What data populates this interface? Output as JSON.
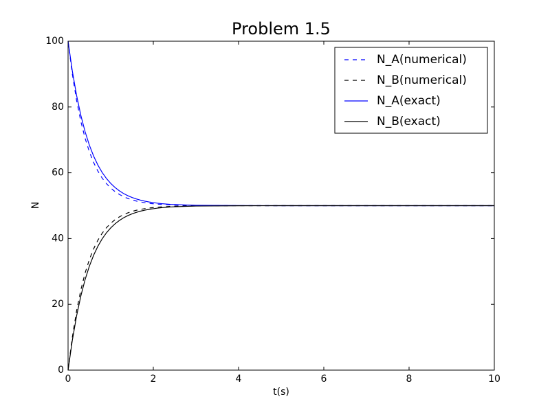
{
  "chart_data": {
    "type": "line",
    "title": "Problem 1.5",
    "x_label": "t(s)",
    "y_label": "N",
    "x": [
      0,
      0.1,
      0.2,
      0.3,
      0.4,
      0.5,
      0.6,
      0.7,
      0.8,
      0.9,
      1.0,
      1.1,
      1.2,
      1.3,
      1.4,
      1.5,
      1.6,
      1.7,
      1.8,
      1.9,
      2.0,
      2.1,
      2.2,
      2.3,
      2.4,
      2.5,
      2.6,
      2.7,
      2.8,
      2.9,
      3.0,
      4,
      5,
      6,
      7,
      8,
      9,
      10
    ],
    "series": [
      {
        "name": "N_A(numerical)",
        "color": "#0000ff",
        "linestyle": "dashed",
        "values": [
          100,
          90,
          82,
          75.6,
          70.48,
          66.38,
          63.11,
          60.49,
          58.39,
          56.71,
          55.37,
          54.29,
          53.44,
          52.75,
          52.2,
          51.76,
          51.41,
          51.13,
          50.9,
          50.72,
          50.58,
          50.46,
          50.37,
          50.3,
          50.24,
          50.19,
          50.15,
          50.12,
          50.1,
          50.08,
          50.06,
          50.01,
          50,
          50,
          50,
          50,
          50,
          50
        ]
      },
      {
        "name": "N_B(numerical)",
        "color": "#000000",
        "linestyle": "dashed",
        "values": [
          0,
          10,
          18,
          24.4,
          29.52,
          33.62,
          36.89,
          39.51,
          41.61,
          43.29,
          44.63,
          45.71,
          46.56,
          47.25,
          47.8,
          48.24,
          48.59,
          48.87,
          49.1,
          49.28,
          49.42,
          49.54,
          49.63,
          49.7,
          49.76,
          49.81,
          49.85,
          49.88,
          49.9,
          49.92,
          49.94,
          49.99,
          50,
          50,
          50,
          50,
          50,
          50
        ]
      },
      {
        "name": "N_A(exact)",
        "color": "#0000ff",
        "linestyle": "solid",
        "values": [
          100,
          90.94,
          83.52,
          77.44,
          72.47,
          68.39,
          65.06,
          62.33,
          60.09,
          58.26,
          56.77,
          55.54,
          54.54,
          53.71,
          53.04,
          52.49,
          52.04,
          51.67,
          51.37,
          51.12,
          50.92,
          50.75,
          50.61,
          50.5,
          50.41,
          50.34,
          50.28,
          50.23,
          50.18,
          50.15,
          50.12,
          50.02,
          50,
          50,
          50,
          50,
          50,
          50
        ]
      },
      {
        "name": "N_B(exact)",
        "color": "#000000",
        "linestyle": "solid",
        "values": [
          0,
          9.06,
          16.48,
          22.56,
          27.53,
          31.61,
          34.94,
          37.67,
          39.91,
          41.74,
          43.23,
          44.46,
          45.46,
          46.29,
          46.96,
          47.51,
          47.96,
          48.33,
          48.63,
          48.88,
          49.08,
          49.25,
          49.39,
          49.5,
          49.59,
          49.66,
          49.72,
          49.77,
          49.82,
          49.85,
          49.88,
          49.98,
          50,
          50,
          50,
          50,
          50,
          50
        ]
      }
    ],
    "xlim": [
      0,
      10
    ],
    "xticks": [
      0,
      2,
      4,
      6,
      8,
      10
    ],
    "ylim": [
      0,
      100
    ],
    "yticks": [
      0,
      20,
      40,
      60,
      80,
      100
    ],
    "grid": false,
    "legend": "upper right"
  }
}
